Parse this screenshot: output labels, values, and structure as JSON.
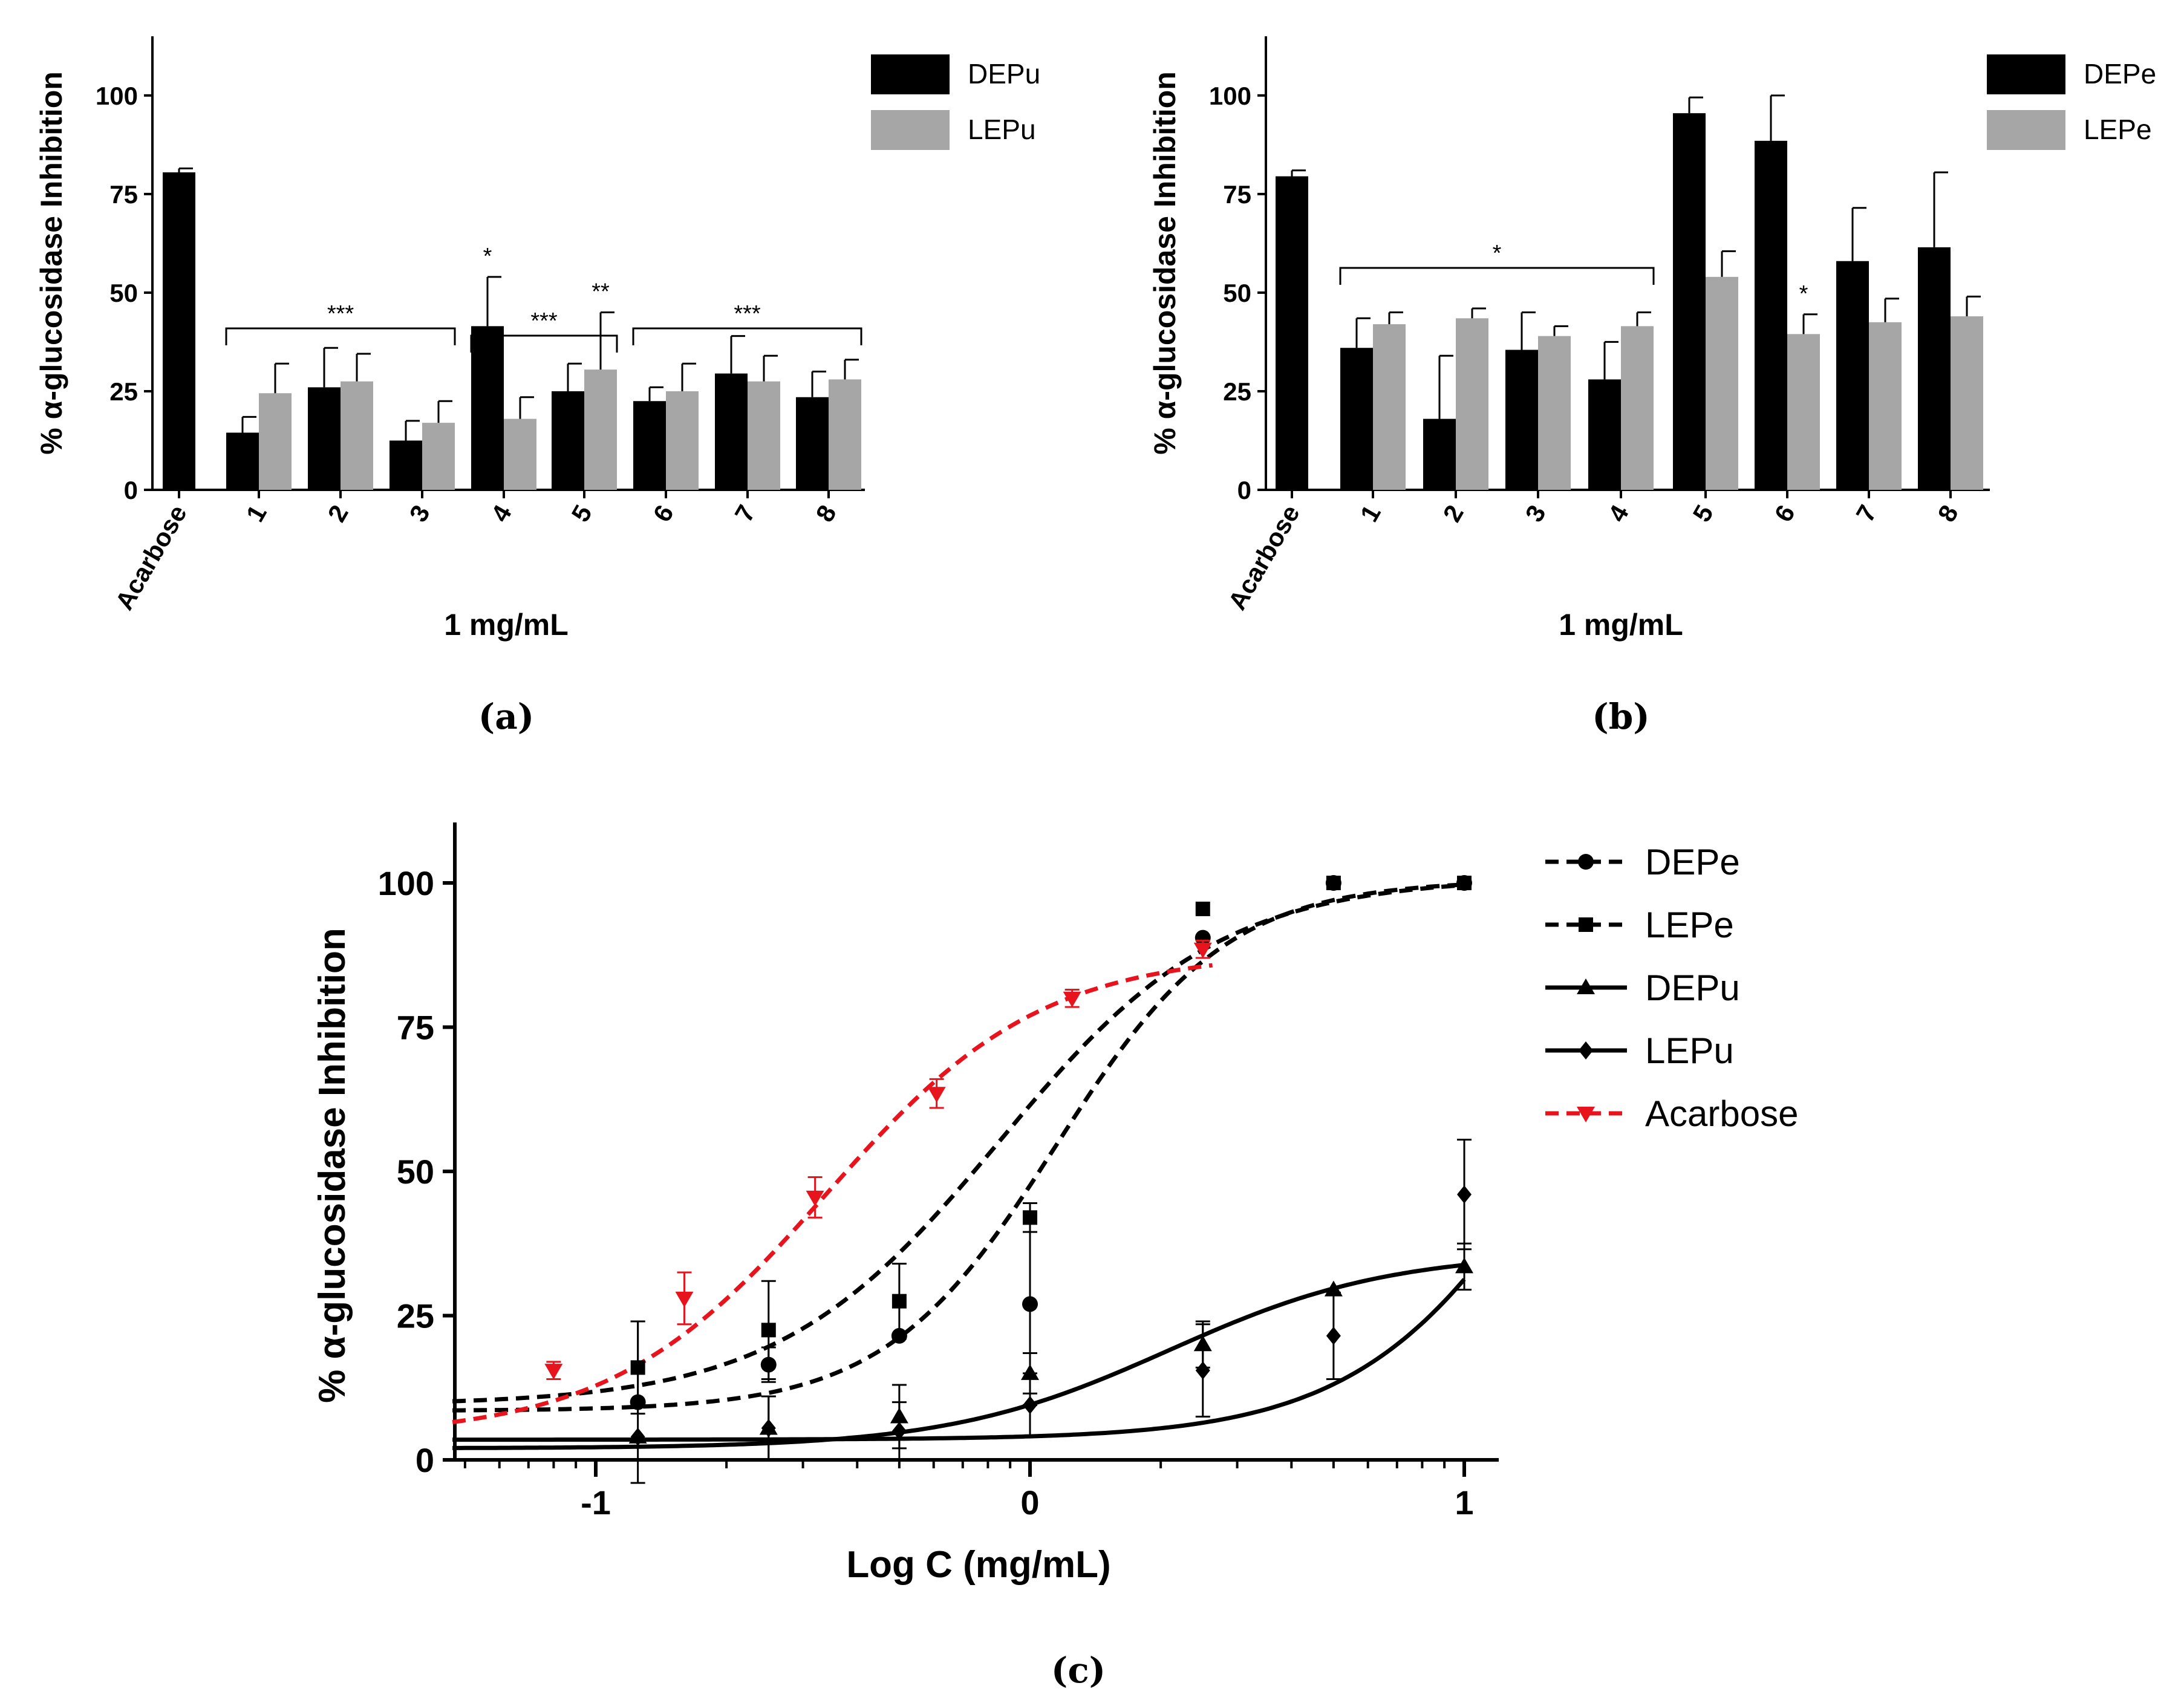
{
  "chart_data": [
    {
      "type": "bar",
      "panel": "(a)",
      "ylabel": "% α-glucosidase Inhibition",
      "xlabel": "1 mg/mL",
      "ylim": [
        0,
        115
      ],
      "yticks": [
        0,
        25,
        50,
        75,
        100
      ],
      "categories": [
        "Acarbose",
        "1",
        "2",
        "3",
        "4",
        "5",
        "6",
        "7",
        "8"
      ],
      "series": [
        {
          "name": "DEPu",
          "color": "#000000",
          "values": [
            80.5,
            14.5,
            26,
            12.5,
            41.5,
            25,
            22.5,
            29.5,
            23.5
          ],
          "errors": [
            1,
            4,
            10,
            5,
            12.5,
            7,
            3.5,
            9.5,
            6.5
          ]
        },
        {
          "name": "LEPu",
          "color": "#a6a6a6",
          "values": [
            null,
            24.5,
            27.5,
            17,
            18,
            30.5,
            25,
            27.5,
            28
          ],
          "errors": [
            null,
            7.5,
            7,
            5.5,
            5.5,
            14.5,
            7,
            6.5,
            5
          ]
        }
      ],
      "annotations": [
        {
          "text": "***",
          "type": "bracket",
          "from": "1",
          "to": "3"
        },
        {
          "text": "*",
          "type": "mark",
          "category": "4"
        },
        {
          "text": "***",
          "type": "bracket",
          "from": "4",
          "to": "5"
        },
        {
          "text": "**",
          "type": "mark",
          "category": "5"
        },
        {
          "text": "***",
          "type": "bracket",
          "from": "6",
          "to": "8"
        }
      ]
    },
    {
      "type": "bar",
      "panel": "(b)",
      "ylabel": "% α-glucosidase Inhibition",
      "xlabel": "1 mg/mL",
      "ylim": [
        0,
        115
      ],
      "yticks": [
        0,
        25,
        50,
        75,
        100
      ],
      "categories": [
        "Acarbose",
        "1",
        "2",
        "3",
        "4",
        "5",
        "6",
        "7",
        "8"
      ],
      "series": [
        {
          "name": "DEPe",
          "color": "#000000",
          "values": [
            79.5,
            36,
            18,
            35.5,
            28,
            95.5,
            88.5,
            58,
            61.5
          ],
          "errors": [
            1.5,
            7.5,
            16,
            9.5,
            9.5,
            4,
            11.5,
            13.5,
            19
          ]
        },
        {
          "name": "LEPe",
          "color": "#a6a6a6",
          "values": [
            null,
            42,
            43.5,
            39,
            41.5,
            54,
            39.5,
            42.5,
            44
          ],
          "errors": [
            null,
            3,
            2.5,
            2.5,
            3.5,
            6.5,
            5,
            6,
            5
          ]
        }
      ],
      "annotations": [
        {
          "text": "*",
          "type": "bracket",
          "from": "1",
          "to": "4"
        },
        {
          "text": "*",
          "type": "mark",
          "category": "6"
        }
      ]
    },
    {
      "type": "line",
      "panel": "(c)",
      "xlabel": "Log C (mg/mL)",
      "ylabel": "% α-glucosidase Inhibition",
      "xlim": [
        -1.33,
        1.1
      ],
      "ylim": [
        0,
        110
      ],
      "xticks": [
        -1,
        0,
        1
      ],
      "yticks": [
        0,
        25,
        50,
        75,
        100
      ],
      "series": [
        {
          "name": "DEPe",
          "marker": "circle",
          "line": "dashed",
          "color": "#000000",
          "points": [
            [
              -0.903,
              10,
              14
            ],
            [
              -0.602,
              16.5,
              3
            ],
            [
              -0.301,
              21.5,
              0
            ],
            [
              0,
              27,
              17.5
            ],
            [
              0.398,
              90.5,
              0
            ],
            [
              0.699,
              100,
              0
            ],
            [
              1,
              100,
              0
            ]
          ],
          "fit": {
            "bottom": 8.5,
            "top": 100.5,
            "logec50": 0.06,
            "hill": 2.2
          }
        },
        {
          "name": "LEPe",
          "marker": "square",
          "line": "dashed",
          "color": "#000000",
          "points": [
            [
              -0.903,
              16,
              8
            ],
            [
              -0.602,
              22.5,
              8.5
            ],
            [
              -0.301,
              27.5,
              6.5
            ],
            [
              0,
              42,
              2.5
            ],
            [
              0.398,
              95.5,
              0
            ],
            [
              0.699,
              100,
              0
            ],
            [
              1,
              100,
              0
            ]
          ],
          "fit": {
            "bottom": 9.5,
            "top": 101,
            "logec50": -0.07,
            "hill": 1.7
          }
        },
        {
          "name": "DEPu",
          "marker": "triangle",
          "line": "solid",
          "color": "#000000",
          "points": [
            [
              -0.903,
              4,
              0
            ],
            [
              -0.602,
              5.5,
              5.5
            ],
            [
              -0.301,
              7.5,
              5.5
            ],
            [
              0,
              15,
              3.5
            ],
            [
              0.398,
              20,
              4
            ],
            [
              0.699,
              29.5,
              0
            ],
            [
              1,
              33.5,
              4
            ]
          ],
          "fit": {
            "bottom": 2,
            "top": 36,
            "logec50": 0.32,
            "hill": 1.7
          }
        },
        {
          "name": "LEPu",
          "marker": "diamond",
          "line": "solid",
          "color": "#000000",
          "points": [
            [
              -0.903,
              4,
              0
            ],
            [
              -0.602,
              5.5,
              5.5
            ],
            [
              -0.301,
              5,
              5
            ],
            [
              0,
              9.5,
              5.5
            ],
            [
              0.398,
              15.5,
              8
            ],
            [
              0.699,
              21.5,
              7.5
            ],
            [
              1,
              46,
              9.5
            ]
          ],
          "fit": {
            "bottom": 3.5,
            "top": 120,
            "logec50": 1.28,
            "hill": 1.8
          }
        },
        {
          "name": "Acarbose",
          "marker": "triangle-down",
          "line": "dashed",
          "color": "#e8141d",
          "points": [
            [
              -1.097,
              15.5,
              1.5
            ],
            [
              -0.796,
              28,
              4.5
            ],
            [
              -0.495,
              45.5,
              3.5
            ],
            [
              -0.215,
              63.5,
              2.5
            ],
            [
              0.097,
              80,
              1.5
            ],
            [
              0.398,
              88.5,
              1.5
            ]
          ],
          "fit": {
            "bottom": 4,
            "top": 88,
            "logec50": -0.47,
            "hill": 1.75
          }
        }
      ]
    }
  ]
}
